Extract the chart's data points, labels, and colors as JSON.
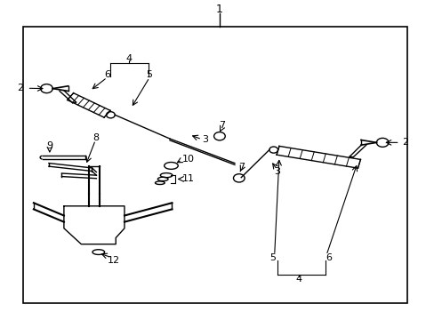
{
  "background_color": "#ffffff",
  "border_color": "#000000",
  "line_color": "#000000",
  "text_color": "#000000",
  "fig_width": 4.89,
  "fig_height": 3.6,
  "dpi": 100
}
